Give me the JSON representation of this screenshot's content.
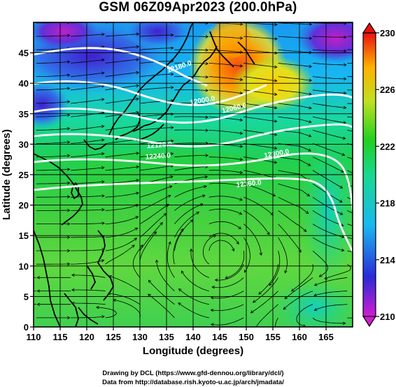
{
  "title": "GSM 06Z09Apr2023 (200.0hPa)",
  "axes": {
    "xlabel": "Longitude (degrees)",
    "ylabel": "Latitude  (degrees)",
    "xlim": [
      110,
      170
    ],
    "ylim": [
      0,
      50
    ],
    "x_ticks": [
      "110",
      "115",
      "120",
      "125",
      "130",
      "135",
      "140",
      "145",
      "150",
      "155",
      "160",
      "165"
    ],
    "y_ticks": [
      "0",
      "5",
      "10",
      "15",
      "20",
      "25",
      "30",
      "35",
      "40",
      "45"
    ]
  },
  "colorbar": {
    "labels": [
      "210",
      "214",
      "218",
      "222",
      "226",
      "230"
    ],
    "colors": [
      "#d01cd0",
      "#2a2ad8",
      "#1ab8f0",
      "#18d890",
      "#20d020",
      "#c0e020",
      "#ffb000",
      "#e81010"
    ]
  },
  "contour_labels": [
    "12180.0",
    "12000.0",
    "12060.0",
    "12120.0",
    "12240.0",
    "12300.0",
    "12360.0"
  ],
  "credits": {
    "line1": "Drawing by DCL (https://www.gfd-dennou.org/library/dcl/)",
    "line2": "Data from http://database.rish.kyoto-u.ac.jp/arch/jmadata/"
  },
  "chart_data": {
    "type": "heatmap",
    "title": "GSM 06Z09Apr2023 (200.0hPa)",
    "xlabel": "Longitude (degrees)",
    "ylabel": "Latitude  (degrees)",
    "xlim": [
      110,
      170
    ],
    "ylim": [
      0,
      50
    ],
    "colorbar_range": [
      210,
      230
    ],
    "colorbar_ticks": [
      210,
      214,
      218,
      222,
      226,
      230
    ],
    "grid": true,
    "overlays": [
      "coastlines",
      "streamlines",
      "height-contours"
    ]
  }
}
